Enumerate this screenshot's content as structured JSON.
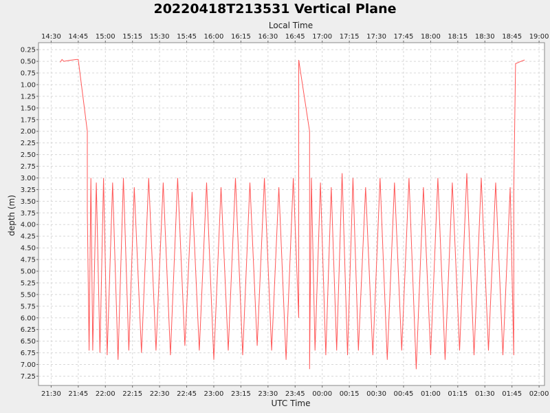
{
  "chart_data": {
    "type": "line",
    "title": "20220418T213531 Vertical Plane",
    "xlabel": "UTC Time",
    "x2label": "Local Time",
    "ylabel": "depth (m)",
    "y_inverted": true,
    "ylim": [
      0.1,
      7.45
    ],
    "xlim_utc": [
      "21:23",
      "02:03"
    ],
    "x_ticks_utc": [
      "21:30",
      "21:45",
      "22:00",
      "22:15",
      "22:30",
      "22:45",
      "23:00",
      "23:15",
      "23:30",
      "23:45",
      "00:00",
      "00:15",
      "00:30",
      "00:45",
      "01:00",
      "01:15",
      "01:30",
      "01:45",
      "02:00"
    ],
    "x_ticks_local": [
      "14:30",
      "14:45",
      "15:00",
      "15:15",
      "15:30",
      "15:45",
      "16:00",
      "16:15",
      "16:30",
      "16:45",
      "17:00",
      "17:15",
      "17:30",
      "17:45",
      "18:00",
      "18:15",
      "18:30",
      "18:45",
      "19:00"
    ],
    "y_ticks": [
      "0.25",
      "0.50",
      "0.75",
      "1.00",
      "1.25",
      "1.50",
      "1.75",
      "2.00",
      "2.25",
      "2.50",
      "2.75",
      "3.00",
      "3.25",
      "3.50",
      "3.75",
      "4.00",
      "4.25",
      "4.50",
      "4.75",
      "5.00",
      "5.25",
      "5.50",
      "5.75",
      "6.00",
      "6.25",
      "6.50",
      "6.75",
      "7.00",
      "7.25"
    ],
    "grid": true,
    "line_color": "#ff5555",
    "series": [
      {
        "points": [
          [
            "21:35",
            0.52
          ],
          [
            "21:36",
            0.46
          ],
          [
            "21:37",
            0.5
          ],
          [
            "21:40",
            0.48
          ],
          [
            "21:44",
            0.46
          ],
          [
            "21:45",
            0.46
          ],
          [
            "21:50",
            2.0
          ],
          [
            "21:50",
            3.7
          ],
          [
            "21:51",
            6.7
          ],
          [
            "21:52",
            3.0
          ],
          [
            "21:53",
            6.7
          ],
          [
            "21:55",
            3.1
          ],
          [
            "21:57",
            6.75
          ],
          [
            "21:59",
            3.0
          ],
          [
            "22:01",
            6.8
          ],
          [
            "22:04",
            3.1
          ],
          [
            "22:07",
            6.9
          ],
          [
            "22:10",
            3.0
          ],
          [
            "22:13",
            6.7
          ],
          [
            "22:16",
            3.2
          ],
          [
            "22:20",
            6.75
          ],
          [
            "22:24",
            3.0
          ],
          [
            "22:28",
            6.7
          ],
          [
            "22:32",
            3.1
          ],
          [
            "22:36",
            6.8
          ],
          [
            "22:40",
            3.0
          ],
          [
            "22:44",
            6.6
          ],
          [
            "22:48",
            3.3
          ],
          [
            "22:52",
            6.7
          ],
          [
            "22:56",
            3.1
          ],
          [
            "23:00",
            6.9
          ],
          [
            "23:04",
            3.2
          ],
          [
            "23:08",
            6.7
          ],
          [
            "23:12",
            3.0
          ],
          [
            "23:16",
            6.8
          ],
          [
            "23:20",
            3.1
          ],
          [
            "23:24",
            6.6
          ],
          [
            "23:28",
            3.0
          ],
          [
            "23:32",
            6.7
          ],
          [
            "23:36",
            3.2
          ],
          [
            "23:40",
            6.9
          ],
          [
            "23:44",
            3.0
          ],
          [
            "23:47",
            6.0
          ],
          [
            "23:47",
            3.3
          ],
          [
            "23:47",
            0.47
          ],
          [
            "23:53",
            2.0
          ],
          [
            "23:53",
            7.1
          ],
          [
            "23:54",
            3.0
          ],
          [
            "23:56",
            6.7
          ],
          [
            "23:59",
            3.1
          ],
          [
            "00:02",
            6.8
          ],
          [
            "00:05",
            3.2
          ],
          [
            "00:08",
            6.7
          ],
          [
            "00:11",
            2.9
          ],
          [
            "00:14",
            6.8
          ],
          [
            "00:17",
            3.0
          ],
          [
            "00:20",
            6.7
          ],
          [
            "00:24",
            3.2
          ],
          [
            "00:28",
            6.8
          ],
          [
            "00:32",
            3.0
          ],
          [
            "00:36",
            6.9
          ],
          [
            "00:40",
            3.1
          ],
          [
            "00:44",
            6.7
          ],
          [
            "00:48",
            3.0
          ],
          [
            "00:52",
            7.1
          ],
          [
            "00:56",
            3.2
          ],
          [
            "01:00",
            6.8
          ],
          [
            "01:04",
            3.0
          ],
          [
            "01:08",
            6.9
          ],
          [
            "01:12",
            3.1
          ],
          [
            "01:16",
            6.7
          ],
          [
            "01:20",
            2.9
          ],
          [
            "01:24",
            6.8
          ],
          [
            "01:28",
            3.0
          ],
          [
            "01:32",
            6.7
          ],
          [
            "01:36",
            3.1
          ],
          [
            "01:40",
            6.8
          ],
          [
            "01:44",
            3.2
          ],
          [
            "01:46",
            6.8
          ],
          [
            "01:46",
            3.3
          ],
          [
            "01:47",
            0.55
          ],
          [
            "01:50",
            0.5
          ],
          [
            "01:52",
            0.47
          ]
        ]
      }
    ]
  }
}
